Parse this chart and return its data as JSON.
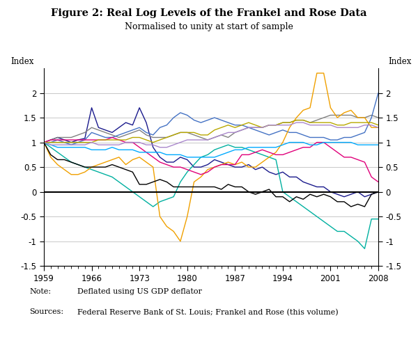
{
  "title": "Figure 2: Real Log Levels of the Frankel and Rose Data",
  "subtitle": "Normalised to unity at start of sample",
  "ylabel_left": "Index",
  "ylabel_right": "Index",
  "note_label": "Note:",
  "note_text": "Deflated using US GDP deflator",
  "sources_label": "Sources:",
  "sources_text": "Federal Reserve Bank of St. Louis; Frankel and Rose (this volume)",
  "years": [
    1959,
    1960,
    1961,
    1962,
    1963,
    1964,
    1965,
    1966,
    1967,
    1968,
    1969,
    1970,
    1971,
    1972,
    1973,
    1974,
    1975,
    1976,
    1977,
    1978,
    1979,
    1980,
    1981,
    1982,
    1983,
    1984,
    1985,
    1986,
    1987,
    1988,
    1989,
    1990,
    1991,
    1992,
    1993,
    1994,
    1995,
    1996,
    1997,
    1998,
    1999,
    2000,
    2001,
    2002,
    2003,
    2004,
    2005,
    2006,
    2007,
    2008
  ],
  "ylim": [
    -1.5,
    2.5
  ],
  "yticks": [
    -1.5,
    -1.0,
    -0.5,
    0.0,
    0.5,
    1.0,
    1.5,
    2.0
  ],
  "major_years": [
    1959,
    1966,
    1973,
    1980,
    1987,
    1994,
    2001,
    2008
  ],
  "series": {
    "navy": {
      "color": "#1a1a8c",
      "values": [
        1.0,
        1.05,
        1.1,
        1.05,
        1.0,
        1.05,
        1.08,
        1.7,
        1.3,
        1.25,
        1.2,
        1.3,
        1.4,
        1.35,
        1.7,
        1.4,
        0.9,
        0.7,
        0.6,
        0.6,
        0.7,
        0.65,
        0.5,
        0.5,
        0.55,
        0.65,
        0.6,
        0.55,
        0.5,
        0.5,
        0.55,
        0.45,
        0.5,
        0.4,
        0.35,
        0.4,
        0.3,
        0.3,
        0.2,
        0.15,
        0.1,
        0.1,
        0.0,
        -0.05,
        -0.1,
        -0.05,
        0.0,
        -0.1,
        -0.05,
        0.0
      ]
    },
    "gray": {
      "color": "#808080",
      "values": [
        1.0,
        1.05,
        1.1,
        1.1,
        1.1,
        1.15,
        1.2,
        1.3,
        1.25,
        1.2,
        1.15,
        1.1,
        1.15,
        1.2,
        1.25,
        1.15,
        1.1,
        1.1,
        1.1,
        1.15,
        1.2,
        1.2,
        1.15,
        1.1,
        1.05,
        1.1,
        1.15,
        1.1,
        1.2,
        1.25,
        1.3,
        1.3,
        1.3,
        1.35,
        1.35,
        1.4,
        1.4,
        1.45,
        1.45,
        1.4,
        1.45,
        1.5,
        1.55,
        1.55,
        1.55,
        1.55,
        1.5,
        1.5,
        1.55,
        1.5
      ]
    },
    "blue": {
      "color": "#4472c4",
      "values": [
        1.0,
        1.0,
        1.05,
        1.0,
        0.95,
        1.0,
        1.05,
        1.2,
        1.15,
        1.1,
        1.1,
        1.15,
        1.2,
        1.25,
        1.3,
        1.2,
        1.15,
        1.3,
        1.35,
        1.5,
        1.6,
        1.55,
        1.45,
        1.4,
        1.45,
        1.5,
        1.45,
        1.4,
        1.35,
        1.35,
        1.3,
        1.25,
        1.2,
        1.15,
        1.2,
        1.25,
        1.2,
        1.2,
        1.15,
        1.1,
        1.1,
        1.1,
        1.05,
        1.05,
        1.1,
        1.1,
        1.15,
        1.2,
        1.5,
        2.0
      ]
    },
    "cyan": {
      "color": "#00b0a0",
      "values": [
        1.0,
        0.9,
        0.8,
        0.7,
        0.6,
        0.55,
        0.5,
        0.45,
        0.4,
        0.35,
        0.3,
        0.2,
        0.1,
        0.0,
        -0.1,
        -0.2,
        -0.3,
        -0.2,
        -0.15,
        -0.1,
        0.2,
        0.4,
        0.55,
        0.7,
        0.75,
        0.85,
        0.9,
        0.95,
        0.9,
        0.9,
        0.85,
        0.8,
        0.75,
        0.7,
        0.65,
        0.0,
        -0.1,
        -0.2,
        -0.3,
        -0.4,
        -0.5,
        -0.6,
        -0.7,
        -0.8,
        -0.8,
        -0.9,
        -1.0,
        -1.15,
        -0.55,
        -0.55
      ]
    },
    "orange": {
      "color": "#f0a000",
      "values": [
        1.0,
        0.7,
        0.55,
        0.45,
        0.35,
        0.35,
        0.4,
        0.5,
        0.55,
        0.6,
        0.65,
        0.7,
        0.55,
        0.65,
        0.7,
        0.6,
        0.5,
        -0.5,
        -0.7,
        -0.8,
        -1.0,
        -0.5,
        0.2,
        0.3,
        0.45,
        0.5,
        0.55,
        0.6,
        0.55,
        0.6,
        0.5,
        0.5,
        0.6,
        0.7,
        0.8,
        1.0,
        1.3,
        1.5,
        1.65,
        1.7,
        2.4,
        2.4,
        1.7,
        1.5,
        1.6,
        1.65,
        1.5,
        1.5,
        1.3,
        1.3
      ]
    },
    "black": {
      "color": "#000000",
      "values": [
        1.0,
        0.75,
        0.65,
        0.65,
        0.6,
        0.55,
        0.5,
        0.5,
        0.5,
        0.5,
        0.55,
        0.5,
        0.45,
        0.4,
        0.15,
        0.15,
        0.2,
        0.25,
        0.2,
        0.1,
        0.1,
        0.1,
        0.1,
        0.1,
        0.1,
        0.1,
        0.05,
        0.15,
        0.1,
        0.1,
        0.0,
        -0.05,
        0.0,
        0.05,
        -0.1,
        -0.1,
        -0.2,
        -0.1,
        -0.15,
        -0.05,
        -0.1,
        -0.05,
        -0.1,
        -0.2,
        -0.2,
        -0.3,
        -0.25,
        -0.3,
        -0.05,
        0.0
      ]
    },
    "magenta": {
      "color": "#e0007a",
      "values": [
        1.0,
        1.05,
        1.05,
        1.05,
        1.05,
        1.05,
        1.05,
        1.05,
        1.05,
        1.05,
        1.1,
        1.05,
        1.0,
        1.0,
        0.9,
        0.8,
        0.7,
        0.6,
        0.55,
        0.5,
        0.5,
        0.45,
        0.4,
        0.35,
        0.4,
        0.5,
        0.55,
        0.55,
        0.55,
        0.75,
        0.75,
        0.8,
        0.85,
        0.8,
        0.75,
        0.75,
        0.8,
        0.85,
        0.9,
        0.9,
        1.0,
        1.0,
        0.9,
        0.8,
        0.7,
        0.7,
        0.65,
        0.6,
        0.3,
        0.2
      ]
    },
    "skyblue": {
      "color": "#00aaff",
      "values": [
        1.0,
        0.95,
        0.9,
        0.9,
        0.9,
        0.9,
        0.9,
        0.85,
        0.85,
        0.85,
        0.9,
        0.85,
        0.85,
        0.85,
        0.8,
        0.8,
        0.8,
        0.8,
        0.75,
        0.75,
        0.75,
        0.7,
        0.7,
        0.7,
        0.7,
        0.7,
        0.75,
        0.8,
        0.85,
        0.85,
        0.9,
        0.9,
        0.9,
        0.9,
        0.9,
        0.95,
        1.0,
        1.0,
        1.0,
        0.95,
        0.95,
        1.0,
        1.0,
        1.0,
        1.0,
        1.0,
        0.95,
        0.95,
        0.95,
        0.95
      ]
    },
    "olive": {
      "color": "#b8a800",
      "values": [
        1.0,
        1.0,
        1.0,
        1.0,
        1.0,
        1.0,
        1.0,
        1.0,
        1.05,
        1.05,
        1.05,
        1.05,
        1.05,
        1.1,
        1.1,
        1.05,
        1.0,
        1.05,
        1.1,
        1.15,
        1.2,
        1.2,
        1.2,
        1.15,
        1.15,
        1.25,
        1.3,
        1.35,
        1.3,
        1.35,
        1.4,
        1.35,
        1.3,
        1.35,
        1.35,
        1.4,
        1.4,
        1.45,
        1.45,
        1.4,
        1.4,
        1.4,
        1.4,
        1.35,
        1.35,
        1.4,
        1.4,
        1.4,
        1.4,
        1.35
      ]
    },
    "purple": {
      "color": "#aa88cc",
      "values": [
        1.0,
        0.95,
        0.95,
        0.95,
        0.95,
        0.95,
        0.95,
        1.0,
        0.95,
        0.95,
        0.95,
        0.95,
        1.0,
        1.0,
        1.0,
        0.95,
        0.95,
        0.9,
        0.9,
        0.95,
        1.0,
        1.05,
        1.05,
        1.05,
        1.05,
        1.1,
        1.15,
        1.2,
        1.2,
        1.25,
        1.3,
        1.3,
        1.3,
        1.35,
        1.35,
        1.35,
        1.35,
        1.4,
        1.4,
        1.35,
        1.35,
        1.35,
        1.35,
        1.3,
        1.3,
        1.3,
        1.3,
        1.35,
        1.35,
        1.3
      ]
    }
  },
  "background_color": "#ffffff",
  "grid_color": "#c8c8c8",
  "zero_line_color": "#000000"
}
